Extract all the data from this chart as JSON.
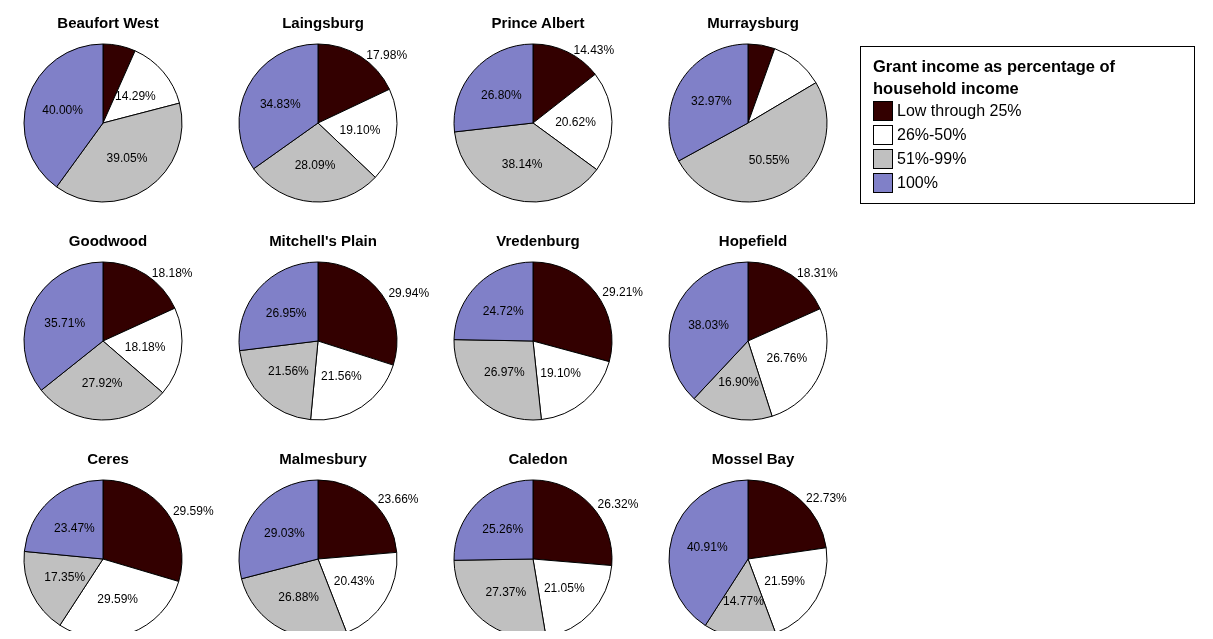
{
  "chart_data": [
    {
      "type": "pie",
      "title": "Beaufort West",
      "legend": "right",
      "legend_title": "Grant income as percentage of household income",
      "categories": [
        "Low through 25%",
        "26%-50%",
        "51%-99%",
        "100%"
      ],
      "colors": [
        "#330000",
        "#ffffff",
        "#c0c0c0",
        "#8080c8"
      ],
      "values": [
        6.66,
        14.29,
        39.05,
        40.0
      ],
      "value_labels": [
        null,
        "14.29%",
        "39.05%",
        "40.00%"
      ]
    },
    {
      "type": "pie",
      "title": "Laingsburg",
      "categories": [
        null,
        null,
        null,
        null
      ],
      "colors": [
        "#330000",
        "#ffffff",
        "#c0c0c0",
        "#8080c8"
      ],
      "values": [
        17.98,
        19.1,
        28.09,
        34.83
      ],
      "value_labels": [
        "17.98%",
        "19.10%",
        "28.09%",
        "34.83%"
      ]
    },
    {
      "type": "pie",
      "title": "Prince Albert",
      "categories": [
        null,
        null,
        null,
        null
      ],
      "colors": [
        "#330000",
        "#ffffff",
        "#c0c0c0",
        "#8080c8"
      ],
      "values": [
        14.43,
        20.62,
        38.14,
        26.8
      ],
      "value_labels": [
        "14.43%",
        "20.62%",
        "38.14%",
        "26.80%"
      ]
    },
    {
      "type": "pie",
      "title": "Murraysburg",
      "categories": [
        null,
        null,
        null,
        null
      ],
      "colors": [
        "#330000",
        "#ffffff",
        "#c0c0c0",
        "#8080c8"
      ],
      "values": [
        5.49,
        10.99,
        50.55,
        32.97
      ],
      "value_labels": [
        null,
        null,
        "50.55%",
        "32.97%"
      ]
    },
    {
      "type": "pie",
      "title": "Goodwood",
      "categories": [
        null,
        null,
        null,
        null
      ],
      "colors": [
        "#330000",
        "#ffffff",
        "#c0c0c0",
        "#8080c8"
      ],
      "values": [
        18.18,
        18.18,
        27.92,
        35.71
      ],
      "value_labels": [
        "18.18%",
        "18.18%",
        "27.92%",
        "35.71%"
      ]
    },
    {
      "type": "pie",
      "title": "Mitchell's Plain",
      "categories": [
        null,
        null,
        null,
        null
      ],
      "colors": [
        "#330000",
        "#ffffff",
        "#c0c0c0",
        "#8080c8"
      ],
      "values": [
        29.94,
        21.56,
        21.56,
        26.95
      ],
      "value_labels": [
        "29.94%",
        "21.56%",
        "21.56%",
        "26.95%"
      ]
    },
    {
      "type": "pie",
      "title": "Vredenburg",
      "categories": [
        null,
        null,
        null,
        null
      ],
      "colors": [
        "#330000",
        "#ffffff",
        "#c0c0c0",
        "#8080c8"
      ],
      "values": [
        29.21,
        19.1,
        26.97,
        24.72
      ],
      "value_labels": [
        "29.21%",
        "19.10%",
        "26.97%",
        "24.72%"
      ]
    },
    {
      "type": "pie",
      "title": "Hopefield",
      "categories": [
        null,
        null,
        null,
        null
      ],
      "colors": [
        "#330000",
        "#ffffff",
        "#c0c0c0",
        "#8080c8"
      ],
      "values": [
        18.31,
        26.76,
        16.9,
        38.03
      ],
      "value_labels": [
        "18.31%",
        "26.76%",
        "16.90%",
        "38.03%"
      ]
    },
    {
      "type": "pie",
      "title": "Ceres",
      "categories": [
        null,
        null,
        null,
        null
      ],
      "colors": [
        "#330000",
        "#ffffff",
        "#c0c0c0",
        "#8080c8"
      ],
      "values": [
        29.59,
        29.59,
        17.35,
        23.47
      ],
      "value_labels": [
        "29.59%",
        "29.59%",
        "17.35%",
        "23.47%"
      ]
    },
    {
      "type": "pie",
      "title": "Malmesbury",
      "categories": [
        null,
        null,
        null,
        null
      ],
      "colors": [
        "#330000",
        "#ffffff",
        "#c0c0c0",
        "#8080c8"
      ],
      "values": [
        23.66,
        20.43,
        26.88,
        29.03
      ],
      "value_labels": [
        "23.66%",
        "20.43%",
        "26.88%",
        "29.03%"
      ]
    },
    {
      "type": "pie",
      "title": "Caledon",
      "categories": [
        null,
        null,
        null,
        null
      ],
      "colors": [
        "#330000",
        "#ffffff",
        "#c0c0c0",
        "#8080c8"
      ],
      "values": [
        26.32,
        21.05,
        27.37,
        25.26
      ],
      "value_labels": [
        "26.32%",
        "21.05%",
        "27.37%",
        "25.26%"
      ]
    },
    {
      "type": "pie",
      "title": "Mossel Bay",
      "categories": [
        null,
        null,
        null,
        null
      ],
      "colors": [
        "#330000",
        "#ffffff",
        "#c0c0c0",
        "#8080c8"
      ],
      "values": [
        22.73,
        21.59,
        14.77,
        40.91
      ],
      "value_labels": [
        "22.73%",
        "21.59%",
        "14.77%",
        "40.91%"
      ]
    }
  ]
}
